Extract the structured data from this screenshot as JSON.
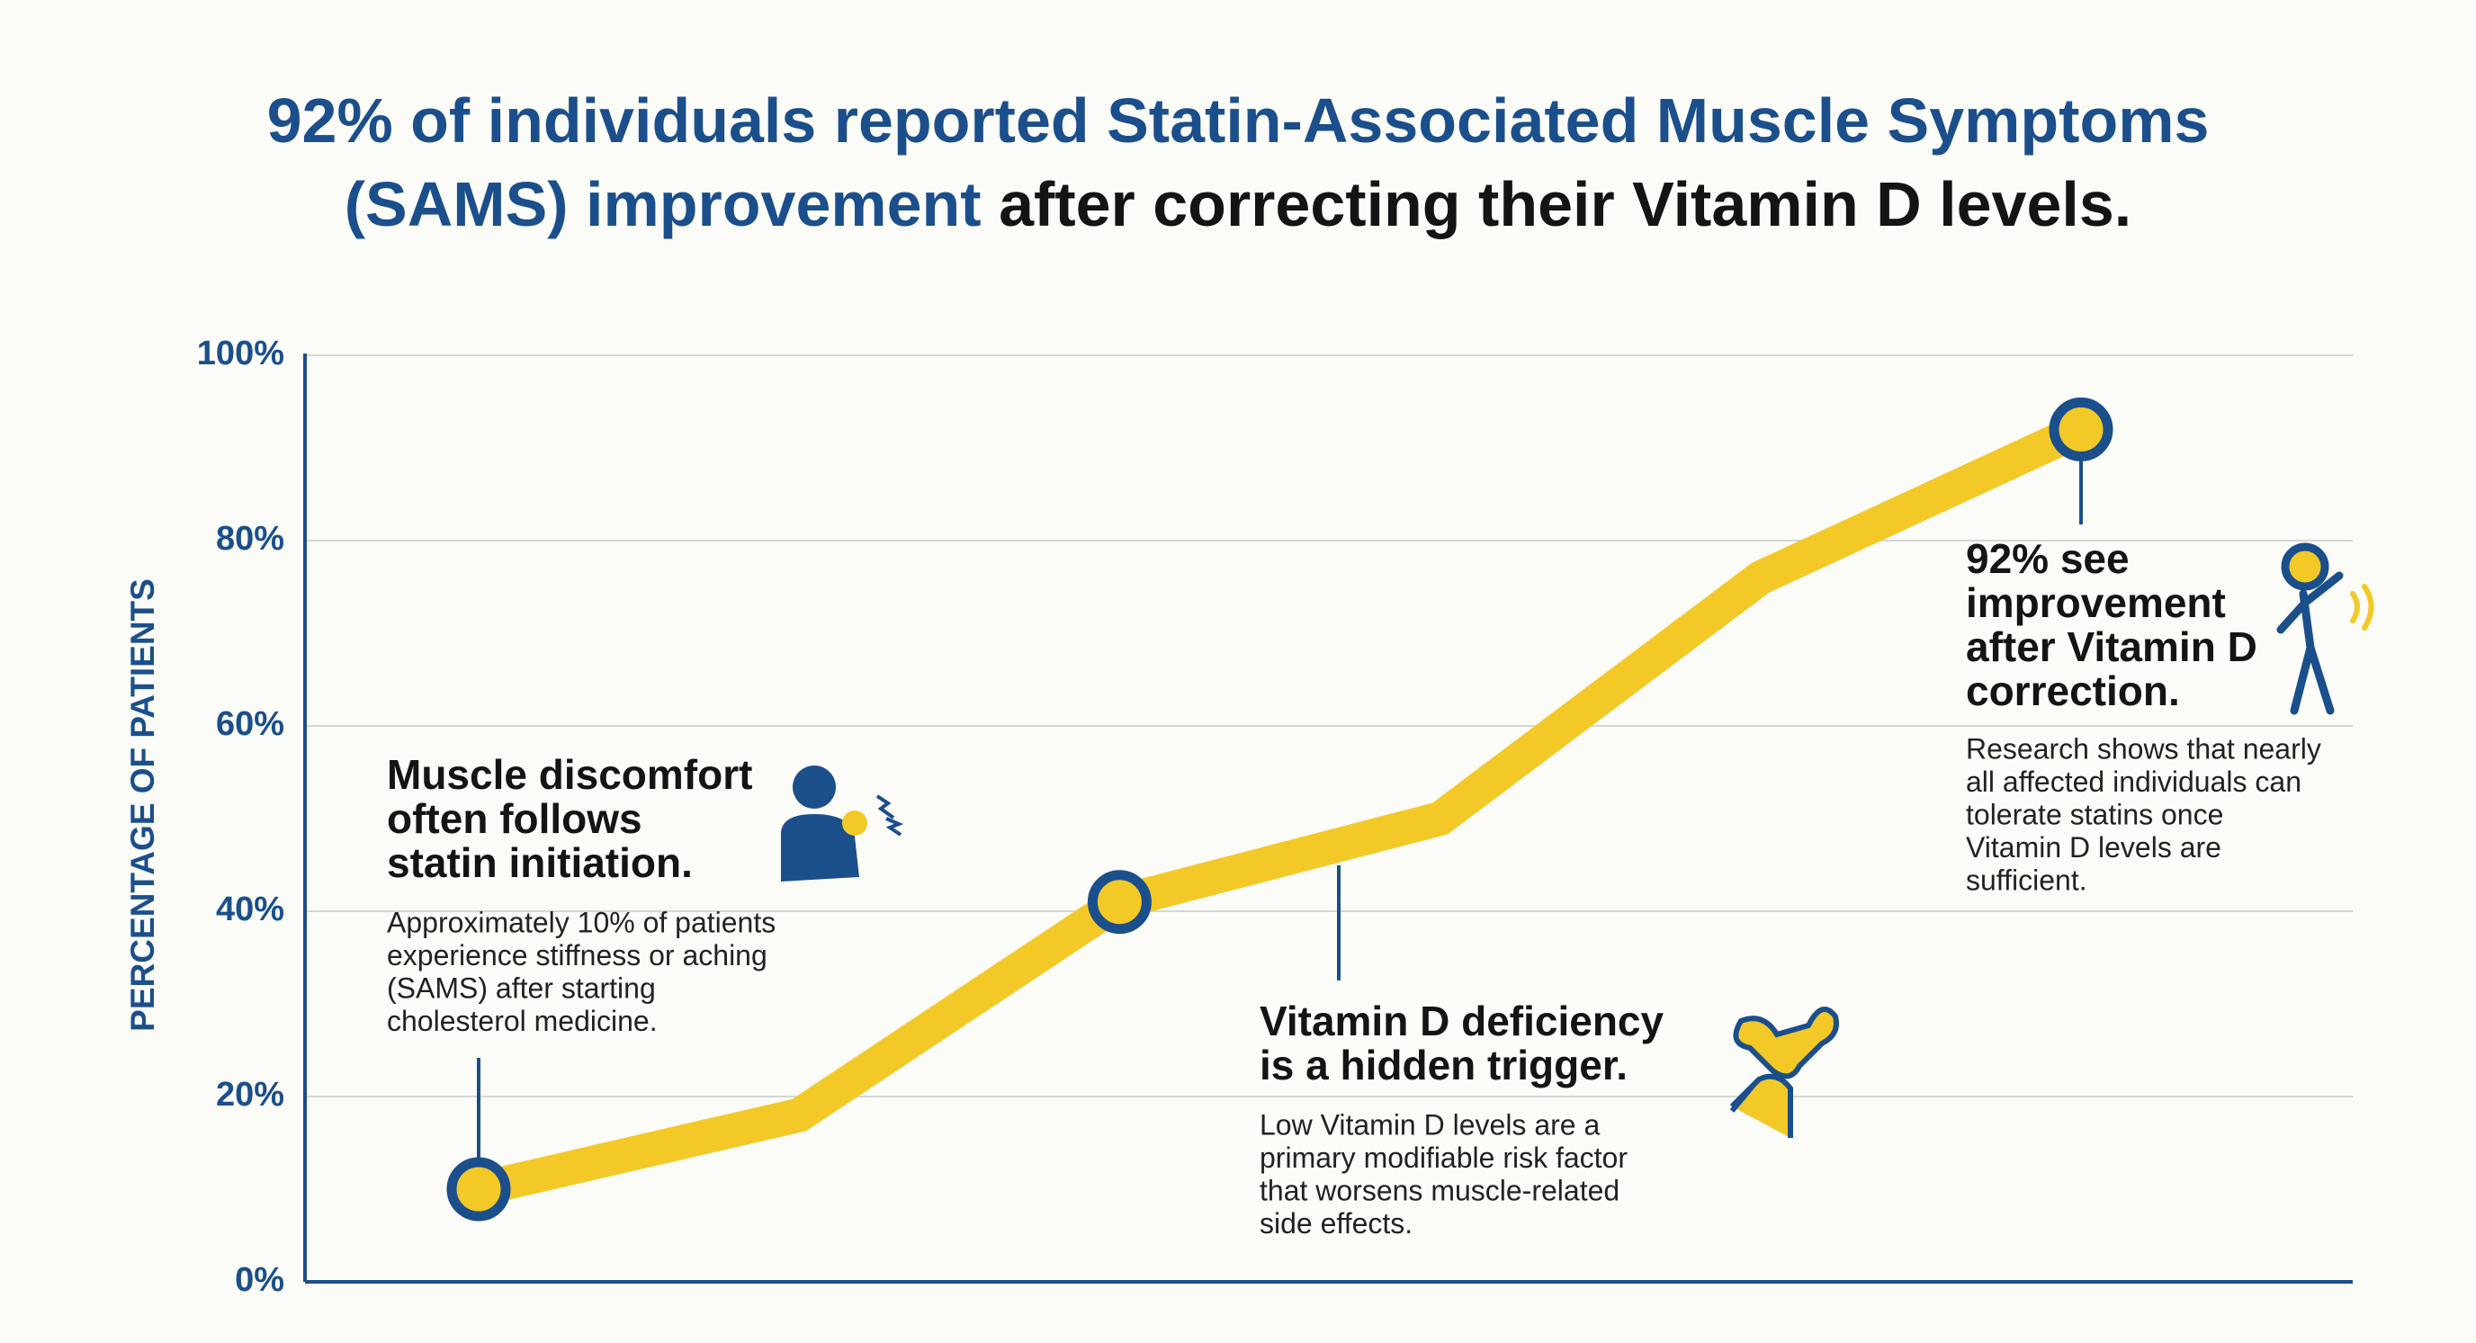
{
  "chart_data": {
    "type": "line",
    "title": [
      {
        "text": "92% of individuals reported Statin-Associated Muscle Symptoms",
        "color": "#1b4f8c"
      },
      {
        "text": "(SAMS) improvement",
        "color": "#1b4f8c"
      },
      {
        "text": "after correcting their Vitamin D levels.",
        "color": "#141414"
      }
    ],
    "y_label": "PERCENTAGE OF PATIENTS",
    "categories": [
      null,
      null,
      null,
      null,
      null,
      null
    ],
    "series": [
      {
        "name": null,
        "color": "#f3c927",
        "values": [
          10,
          18,
          41,
          50,
          76,
          92
        ]
      }
    ],
    "marked_points": [
      0,
      2,
      5
    ],
    "marker_color": "#1b4f8c",
    "ylim": [
      0,
      100
    ],
    "yticks": [
      {
        "value": 0,
        "label": "0%"
      },
      {
        "value": 20,
        "label": "20%"
      },
      {
        "value": 40,
        "label": "40%"
      },
      {
        "value": 60,
        "label": "60%"
      },
      {
        "value": 80,
        "label": "80%"
      },
      {
        "value": 100,
        "label": "100%"
      }
    ],
    "grid": true,
    "annotations": [
      {
        "title": [
          "Muscle discomfort",
          "often follows",
          "statin initiation."
        ],
        "text": [
          "Approximately 10% of patients",
          "experience stiffness or aching",
          "(SAMS) after starting",
          "cholesterol medicine."
        ]
      },
      {
        "title": [
          "Vitamin D deficiency",
          "is a hidden trigger."
        ],
        "text": [
          "Low Vitamin D levels are a",
          "primary modifiable risk factor",
          "that worsens muscle-related",
          "side effects."
        ]
      },
      {
        "title": [
          "92% see",
          "improvement",
          "after Vitamin D",
          "correction."
        ],
        "text": [
          "Research shows that nearly",
          "all affected individuals can",
          "tolerate statins once",
          "Vitamin D levels are",
          "sufficient."
        ]
      }
    ]
  }
}
